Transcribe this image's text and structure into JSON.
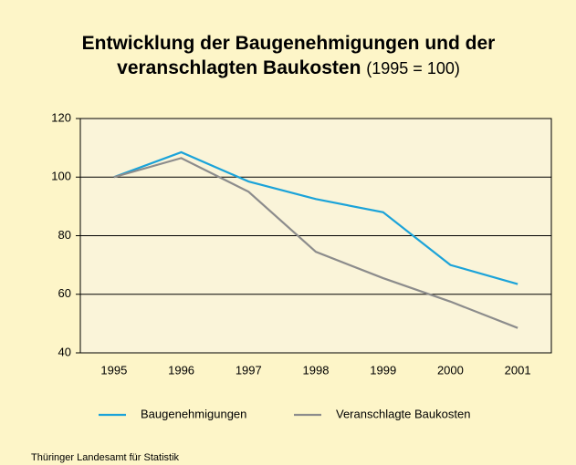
{
  "chart_data": {
    "type": "line",
    "title": "Entwicklung der Baugenehmigungen und der veranschlagten Baukosten",
    "subtitle": "(1995 = 100)",
    "categories": [
      "1995",
      "1996",
      "1997",
      "1998",
      "1999",
      "2000",
      "2001"
    ],
    "series": [
      {
        "name": "Baugenehmigungen",
        "color": "#1ba3d9",
        "values": [
          100,
          108.5,
          98.5,
          92.5,
          88,
          70,
          63.5
        ]
      },
      {
        "name": "Veranschlagte Baukosten",
        "color": "#8c8c8c",
        "values": [
          100,
          106.5,
          95,
          74.5,
          65.5,
          57.5,
          48.5
        ]
      }
    ],
    "ylim": [
      40,
      120
    ],
    "yticks": [
      40,
      60,
      80,
      100,
      120
    ],
    "grid": true,
    "legend": "bottom",
    "source": "Thüringer Landesamt für Statistik"
  }
}
